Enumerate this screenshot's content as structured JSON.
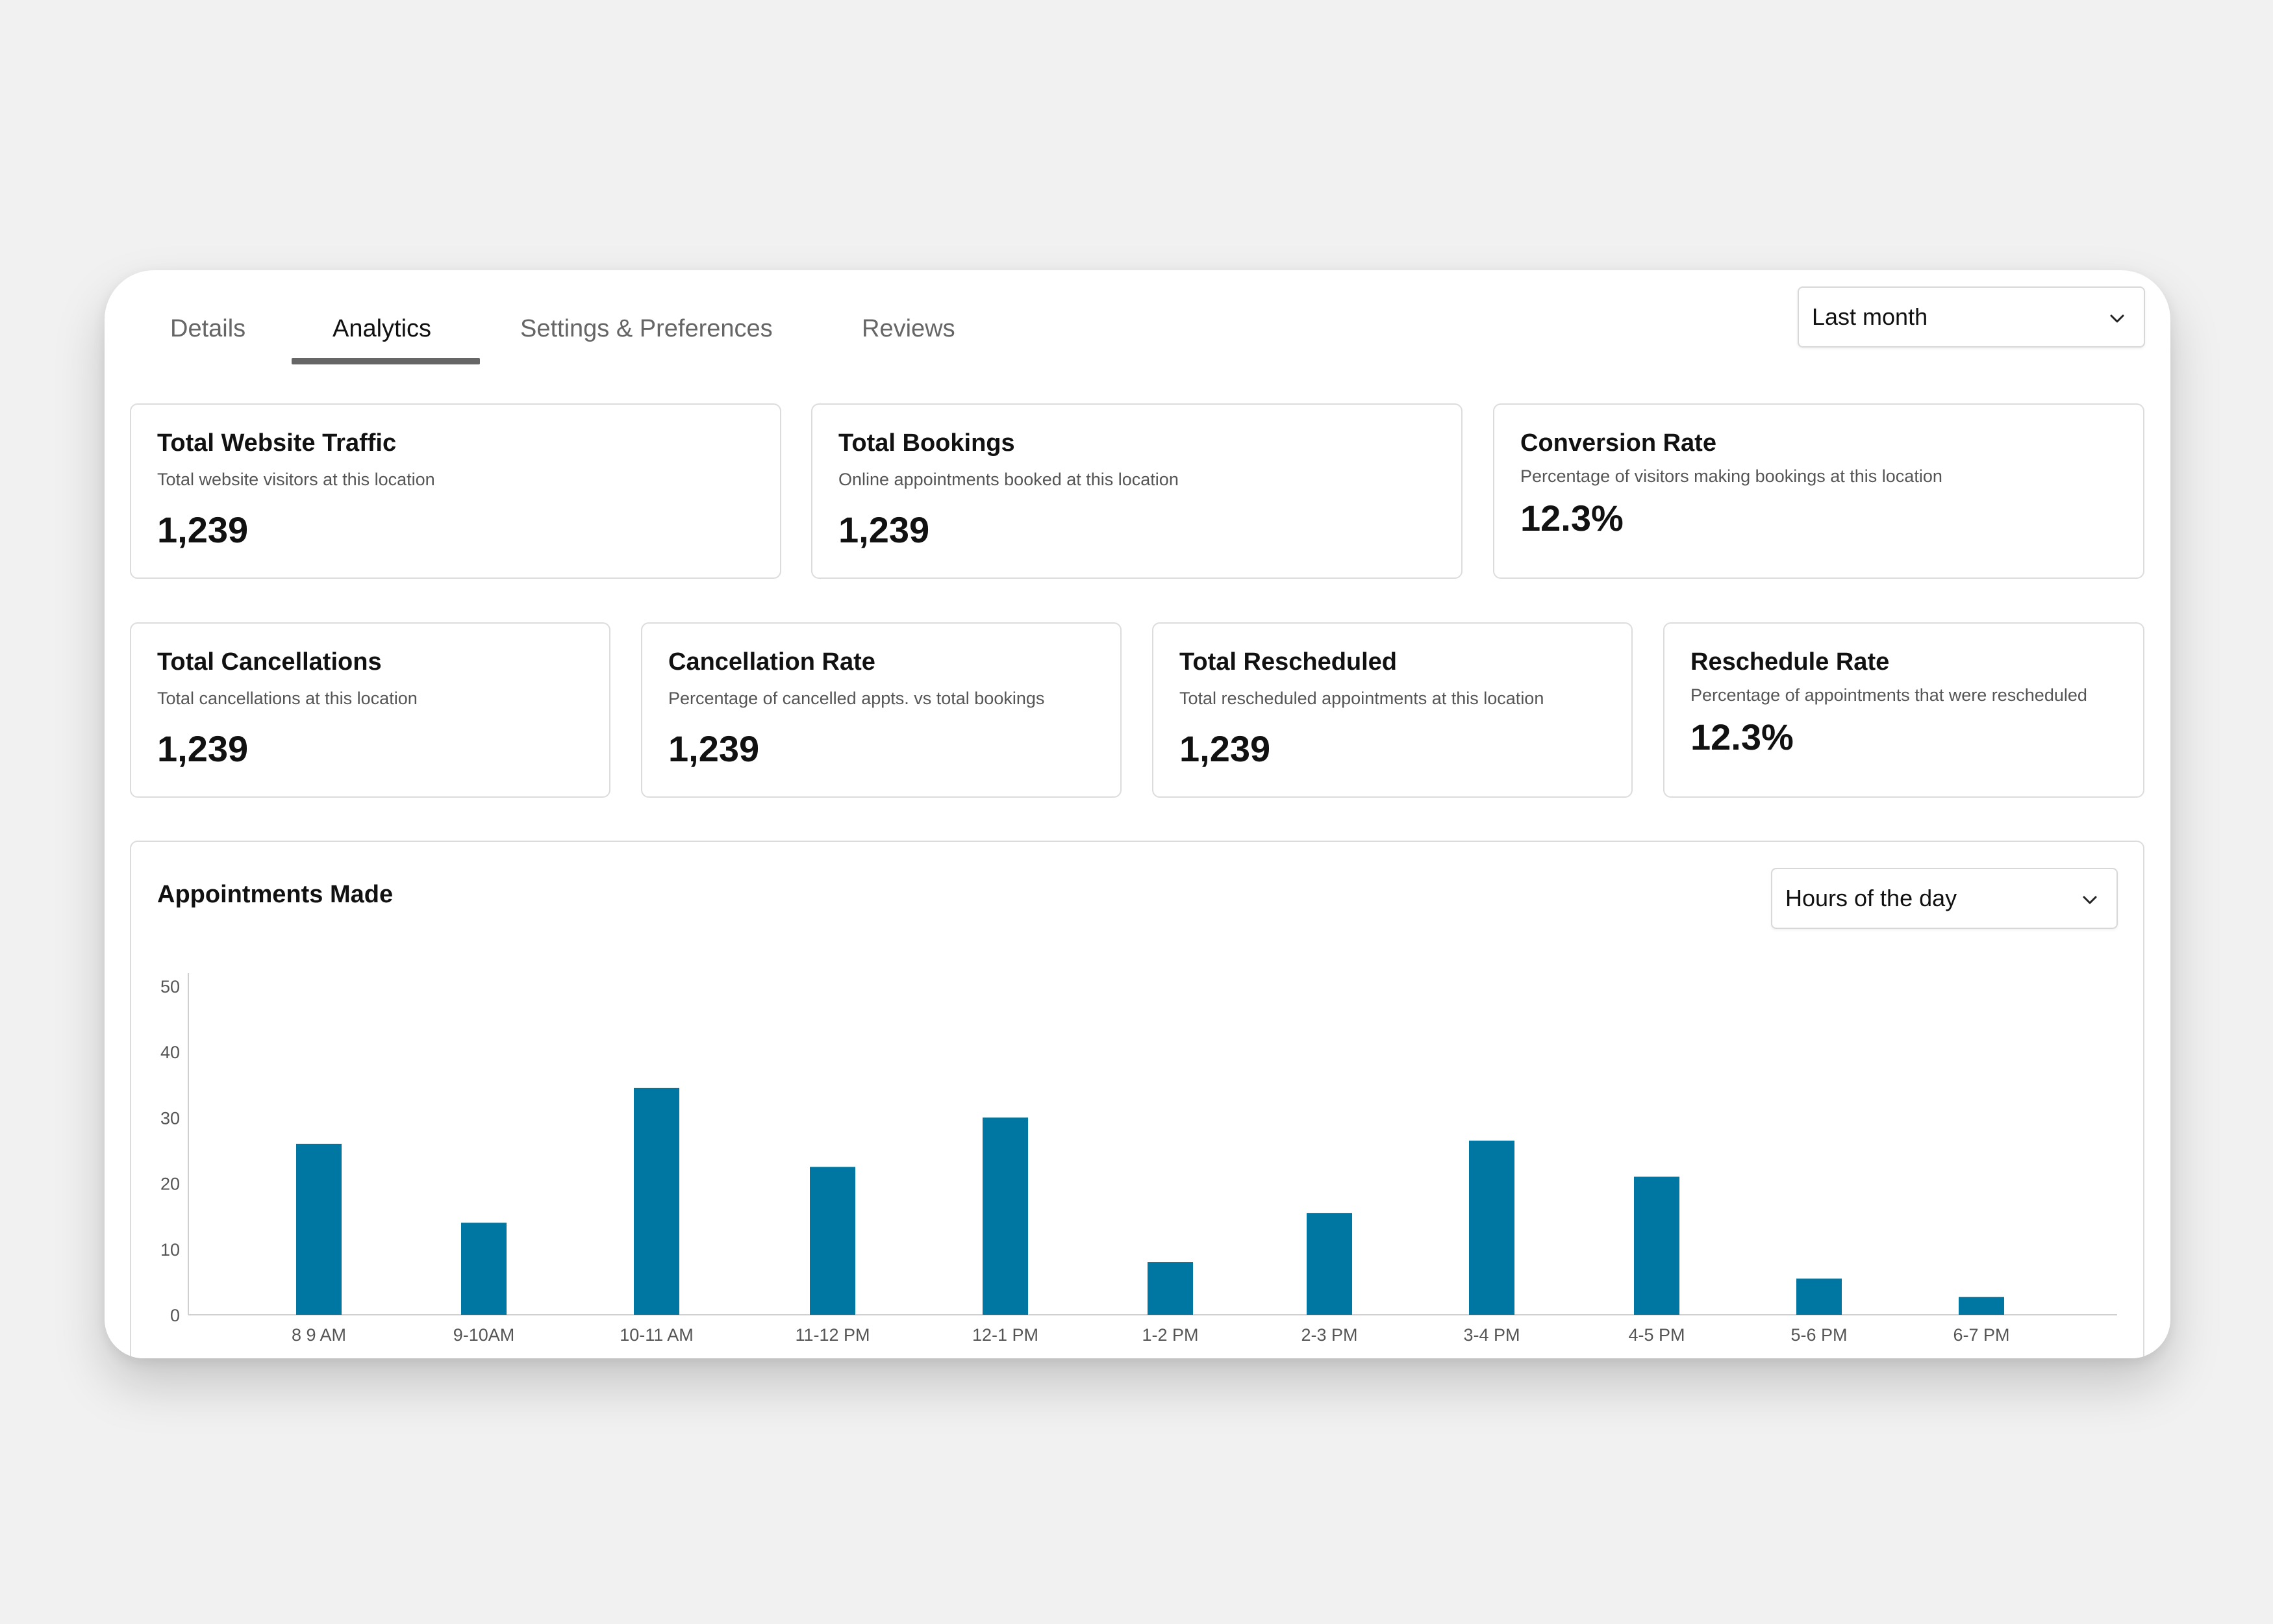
{
  "tabs": [
    {
      "label": "Details"
    },
    {
      "label": "Analytics"
    },
    {
      "label": "Settings & Preferences"
    },
    {
      "label": "Reviews"
    }
  ],
  "active_tab": "Analytics",
  "period_select": {
    "value": "Last month"
  },
  "metrics_row1": [
    {
      "title": "Total Website Traffic",
      "subtitle": "Total website visitors at this location",
      "value": "1,239"
    },
    {
      "title": "Total Bookings",
      "subtitle": "Online appointments booked at this location",
      "value": "1,239"
    },
    {
      "title": "Conversion Rate",
      "subtitle": "Percentage of visitors making bookings at this location",
      "value": "12.3%"
    }
  ],
  "metrics_row2": [
    {
      "title": "Total Cancellations",
      "subtitle": "Total cancellations at this location",
      "value": "1,239"
    },
    {
      "title": "Cancellation Rate",
      "subtitle": "Percentage of cancelled appts. vs total bookings",
      "value": "1,239"
    },
    {
      "title": "Total Rescheduled",
      "subtitle": "Total rescheduled appointments at this location",
      "value": "1,239"
    },
    {
      "title": "Reschedule Rate",
      "subtitle": "Percentage of appointments that were rescheduled",
      "value": "12.3%"
    }
  ],
  "chart_panel": {
    "title": "Appointments Made",
    "range_select": {
      "value": "Hours of the day"
    }
  },
  "colors": {
    "bar": "#0077a3",
    "axis": "#d0d0d0",
    "tick_text": "#555555"
  },
  "chart_data": {
    "type": "bar",
    "categories": [
      "8 9 AM",
      "9-10AM",
      "10-11 AM",
      "11-12 PM",
      "12-1 PM",
      "1-2 PM",
      "2-3 PM",
      "3-4 PM",
      "4-5 PM",
      "5-6 PM",
      "6-7 PM"
    ],
    "values": [
      26,
      14,
      34.5,
      22.5,
      30,
      8,
      15.5,
      26.5,
      21,
      5.5,
      2.7
    ],
    "title": "Appointments Made",
    "xlabel": "",
    "ylabel": "",
    "ylim": [
      0,
      50
    ],
    "yticks": [
      "0",
      "10",
      "20",
      "30",
      "40",
      "50"
    ],
    "grid": false
  }
}
